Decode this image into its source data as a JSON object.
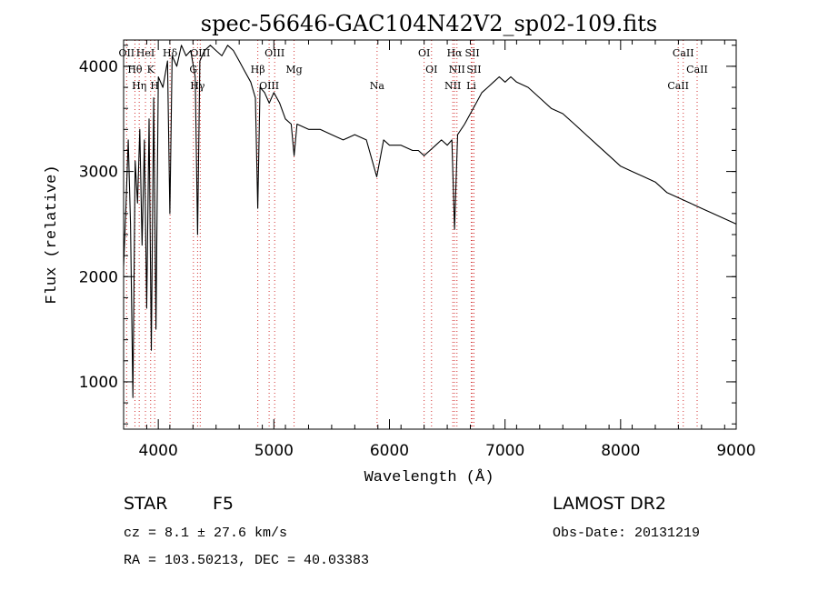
{
  "chart_data": {
    "type": "line",
    "title": "spec-56646-GAC104N42V2_sp02-109.fits",
    "xlabel": "Wavelength (Å)",
    "ylabel": "Flux (relative)",
    "xlim": [
      3700,
      9000
    ],
    "ylim": [
      550,
      4250
    ],
    "x_ticks": [
      4000,
      5000,
      6000,
      7000,
      8000,
      9000
    ],
    "y_ticks": [
      1000,
      2000,
      3000,
      4000
    ],
    "grid": false,
    "line_color": "#000000",
    "marker_color": "#d22f2f",
    "series": [
      {
        "x": [
          3700,
          3720,
          3740,
          3760,
          3780,
          3800,
          3820,
          3840,
          3860,
          3880,
          3900,
          3920,
          3940,
          3960,
          3980,
          4000,
          4040,
          4080,
          4100,
          4120,
          4160,
          4200,
          4240,
          4280,
          4320,
          4340,
          4360,
          4400,
          4450,
          4500,
          4550,
          4600,
          4650,
          4700,
          4750,
          4800,
          4840,
          4861,
          4880,
          4920,
          4960,
          5000,
          5050,
          5100,
          5150,
          5175,
          5200,
          5300,
          5400,
          5500,
          5600,
          5700,
          5800,
          5890,
          5950,
          6000,
          6100,
          6200,
          6250,
          6300,
          6350,
          6400,
          6450,
          6500,
          6540,
          6563,
          6590,
          6650,
          6700,
          6750,
          6800,
          6850,
          6900,
          6950,
          7000,
          7050,
          7100,
          7200,
          7300,
          7400,
          7500,
          7600,
          7700,
          7800,
          7900,
          8000,
          8100,
          8200,
          8300,
          8400,
          8500,
          8600,
          8700,
          8800,
          8900,
          9000
        ],
        "y": [
          2100,
          2650,
          3300,
          2500,
          850,
          3100,
          2700,
          3400,
          2300,
          3300,
          1700,
          3500,
          1300,
          3700,
          1500,
          3900,
          3800,
          4050,
          2600,
          4100,
          4000,
          4200,
          4100,
          4150,
          3900,
          2400,
          4050,
          4150,
          4200,
          4150,
          4100,
          4200,
          4150,
          4050,
          3950,
          3850,
          3700,
          2650,
          3800,
          3750,
          3650,
          3750,
          3650,
          3500,
          3450,
          3150,
          3450,
          3400,
          3400,
          3350,
          3300,
          3350,
          3300,
          2950,
          3300,
          3250,
          3250,
          3200,
          3200,
          3150,
          3200,
          3250,
          3300,
          3250,
          3300,
          2450,
          3350,
          3450,
          3550,
          3650,
          3750,
          3800,
          3850,
          3900,
          3850,
          3900,
          3850,
          3800,
          3700,
          3600,
          3550,
          3450,
          3350,
          3250,
          3150,
          3050,
          3000,
          2950,
          2900,
          2800,
          2750,
          2700,
          2650,
          2600,
          2550,
          2500
        ]
      }
    ],
    "lines": [
      {
        "w": 3726,
        "labels": [
          "OII"
        ]
      },
      {
        "w": 3798,
        "labels": [
          "Hθ"
        ]
      },
      {
        "w": 3835,
        "labels": [
          "Hη"
        ]
      },
      {
        "w": 3889,
        "labels": [
          "HeI"
        ]
      },
      {
        "w": 3934,
        "labels": [
          "K"
        ]
      },
      {
        "w": 3969,
        "labels": [
          "H"
        ]
      },
      {
        "w": 4102,
        "labels": [
          "Hδ"
        ]
      },
      {
        "w": 4304,
        "labels": [
          "G"
        ]
      },
      {
        "w": 4340,
        "labels": [
          "Hγ"
        ]
      },
      {
        "w": 4363,
        "labels": [
          "OIII"
        ]
      },
      {
        "w": 4861,
        "labels": [
          "Hβ"
        ]
      },
      {
        "w": 4959,
        "labels": [
          "OIII"
        ]
      },
      {
        "w": 5007,
        "labels": [
          "OIII"
        ]
      },
      {
        "w": 5175,
        "labels": [
          "Mg"
        ]
      },
      {
        "w": 5893,
        "labels": [
          "Na"
        ]
      },
      {
        "w": 6300,
        "labels": [
          "OI"
        ]
      },
      {
        "w": 6364,
        "labels": [
          "OI"
        ]
      },
      {
        "w": 6548,
        "labels": [
          "NII"
        ]
      },
      {
        "w": 6563,
        "labels": [
          "Hα"
        ]
      },
      {
        "w": 6584,
        "labels": [
          "NII"
        ]
      },
      {
        "w": 6708,
        "labels": [
          "Li"
        ]
      },
      {
        "w": 6717,
        "labels": [
          "SII"
        ]
      },
      {
        "w": 6731,
        "labels": [
          "SII"
        ]
      },
      {
        "w": 8498,
        "labels": [
          "CaII"
        ]
      },
      {
        "w": 8542,
        "labels": [
          "CaII"
        ]
      },
      {
        "w": 8662,
        "labels": [
          "CaII"
        ]
      }
    ]
  },
  "info": {
    "object_class": "STAR",
    "subclass": "F5",
    "cz": "cz = 8.1 ± 27.6 km/s",
    "coords": "RA = 103.50213, DEC =  40.03383",
    "survey": "LAMOST DR2",
    "obs_date": "Obs-Date: 20131219"
  }
}
